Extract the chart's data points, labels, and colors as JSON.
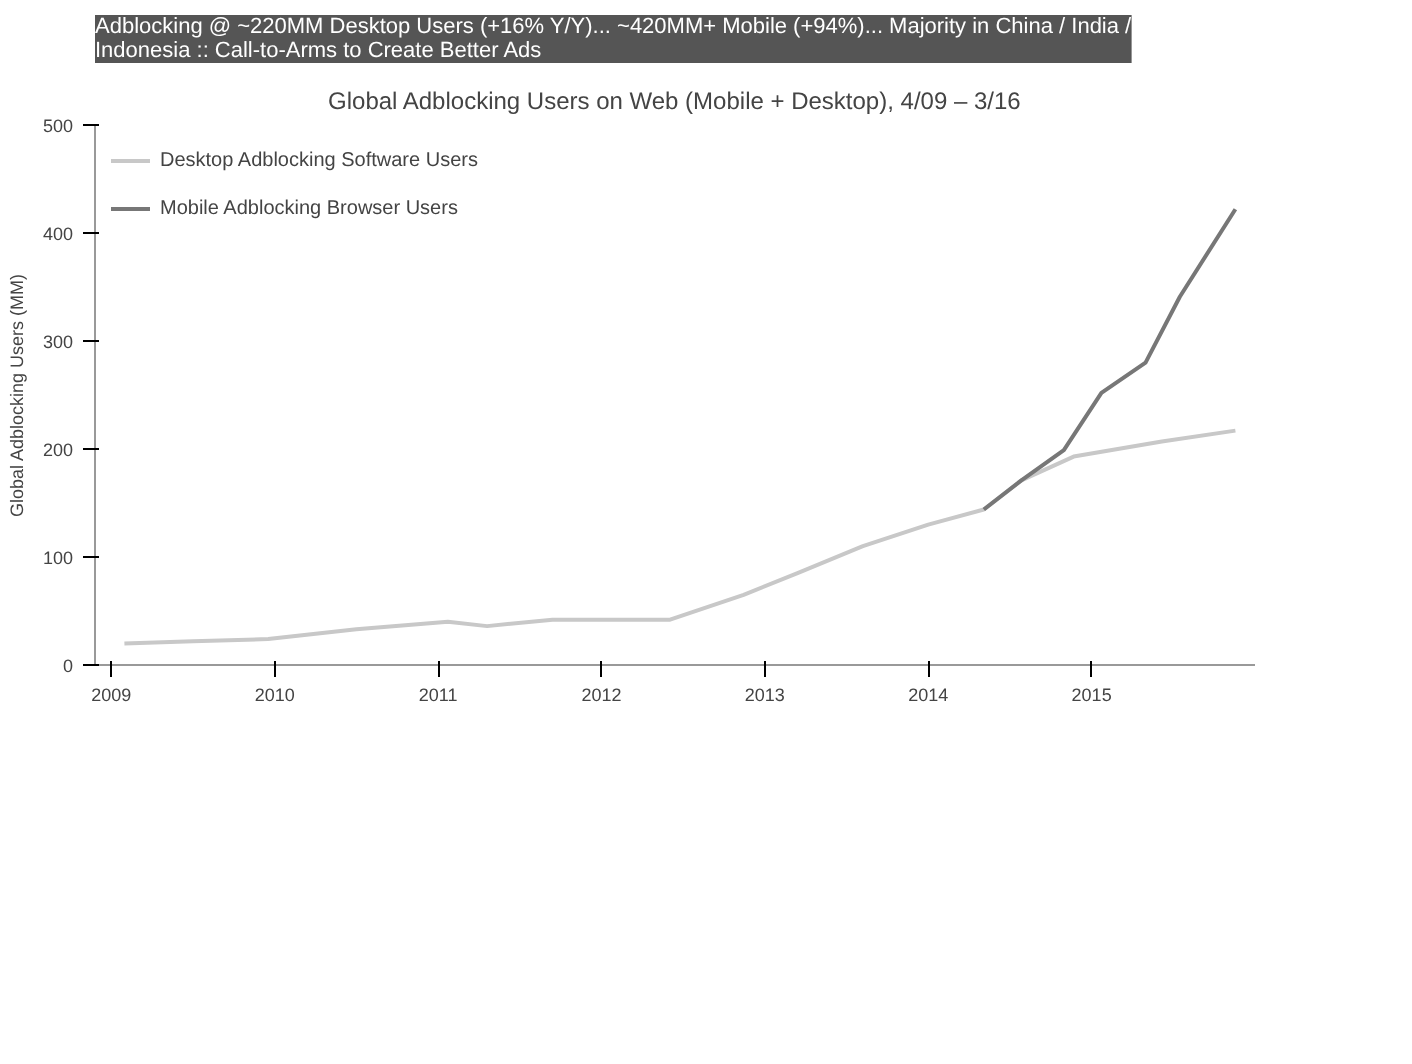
{
  "chart_data": {
    "type": "line",
    "subtitle": "Adblocking @ ~220MM Desktop Users (+16% Y/Y)... ~420MM+ Mobile (+94%)... Majority in China / India / Indonesia :: Call-to-Arms to Create Better Ads",
    "title": "Global Adblocking Users on Web (Mobile + Desktop), 4/09 – 3/16",
    "ylabel": "Global Adblocking Users (MM)",
    "series": [
      {
        "name": "Desktop Adblocking Software Users",
        "color": "#c8c8c8",
        "x": [
          2009.08,
          2009.5,
          2009.96,
          2010.5,
          2011.06,
          2011.3,
          2011.7,
          2012.42,
          2012.87,
          2013.2,
          2013.6,
          2014.0,
          2014.34,
          2014.57,
          2014.89,
          2015.43,
          2015.88
        ],
        "values": [
          20,
          22,
          24,
          33,
          40,
          36,
          42,
          42,
          65,
          85,
          110,
          130,
          144,
          171,
          193,
          207,
          217
        ]
      },
      {
        "name": "Mobile Adblocking Browser Users",
        "color": "#777777",
        "x": [
          2014.34,
          2014.57,
          2014.83,
          2015.06,
          2015.33,
          2015.54,
          2015.88
        ],
        "values": [
          144,
          171,
          199,
          252,
          280,
          341,
          422
        ]
      }
    ],
    "xlim": [
      2008.9,
      2016.0
    ],
    "xticks": [
      2009,
      2010,
      2011,
      2012,
      2013,
      2014,
      2015
    ],
    "ylim": [
      0,
      500
    ],
    "yticks": [
      0,
      100,
      200,
      300,
      400,
      500
    ],
    "grid": false,
    "legend": "top left",
    "line_style": "solid",
    "marker": "none"
  }
}
